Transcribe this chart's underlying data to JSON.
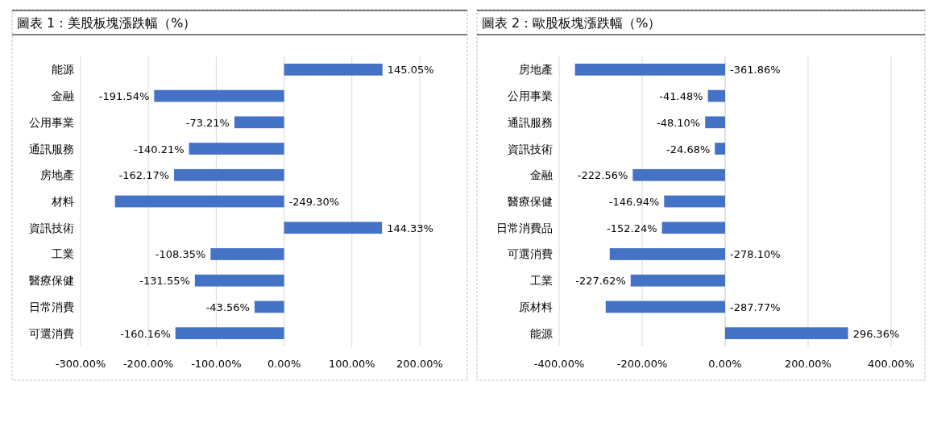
{
  "chart_data": [
    {
      "type": "bar",
      "orientation": "horizontal",
      "title": "圖表 1：美股板塊漲跌幅（%）",
      "categories": [
        "能源",
        "金融",
        "公用事業",
        "通訊服務",
        "房地產",
        "材料",
        "資訊技術",
        "工業",
        "醫療保健",
        "日常消費",
        "可選消費"
      ],
      "values": [
        145.05,
        -191.54,
        -73.21,
        -140.21,
        -162.17,
        -249.3,
        144.33,
        -108.35,
        -131.55,
        -43.56,
        -160.16
      ],
      "value_labels": [
        "145.05%",
        "-191.54%",
        "-73.21%",
        "-140.21%",
        "-162.17%",
        "-249.30%",
        "144.33%",
        "-108.35%",
        "-131.55%",
        "-43.56%",
        "-160.16%"
      ],
      "color": "#4472c4",
      "xlim": [
        -300,
        200
      ],
      "xticks": [
        {
          "value": -300,
          "label": "-300.00%"
        },
        {
          "value": -200,
          "label": "-200.00%"
        },
        {
          "value": -100,
          "label": "-100.00%"
        },
        {
          "value": 0,
          "label": "0.00%"
        },
        {
          "value": 100,
          "label": "100.00%"
        },
        {
          "value": 200,
          "label": "200.00%"
        }
      ],
      "grid": "x"
    },
    {
      "type": "bar",
      "orientation": "horizontal",
      "title": "圖表 2：歐股板塊漲跌幅（%）",
      "categories": [
        "房地產",
        "公用事業",
        "通訊服務",
        "資訊技術",
        "金融",
        "醫療保健",
        "日常消費品",
        "可選消費",
        "工業",
        "原材料",
        "能源"
      ],
      "values": [
        -361.86,
        -41.48,
        -48.1,
        -24.68,
        -222.56,
        -146.94,
        -152.24,
        -278.1,
        -227.62,
        -287.77,
        296.36
      ],
      "value_labels": [
        "-361.86%",
        "-41.48%",
        "-48.10%",
        "-24.68%",
        "-222.56%",
        "-146.94%",
        "-152.24%",
        "-278.10%",
        "-227.62%",
        "-287.77%",
        "296.36%"
      ],
      "color": "#4472c4",
      "xlim": [
        -400,
        400
      ],
      "xticks": [
        {
          "value": -400,
          "label": "-400.00%"
        },
        {
          "value": -200,
          "label": "-200.00%"
        },
        {
          "value": 0,
          "label": "0.00%"
        },
        {
          "value": 200,
          "label": "200.00%"
        },
        {
          "value": 400,
          "label": "400.00%"
        }
      ],
      "grid": "x"
    }
  ]
}
